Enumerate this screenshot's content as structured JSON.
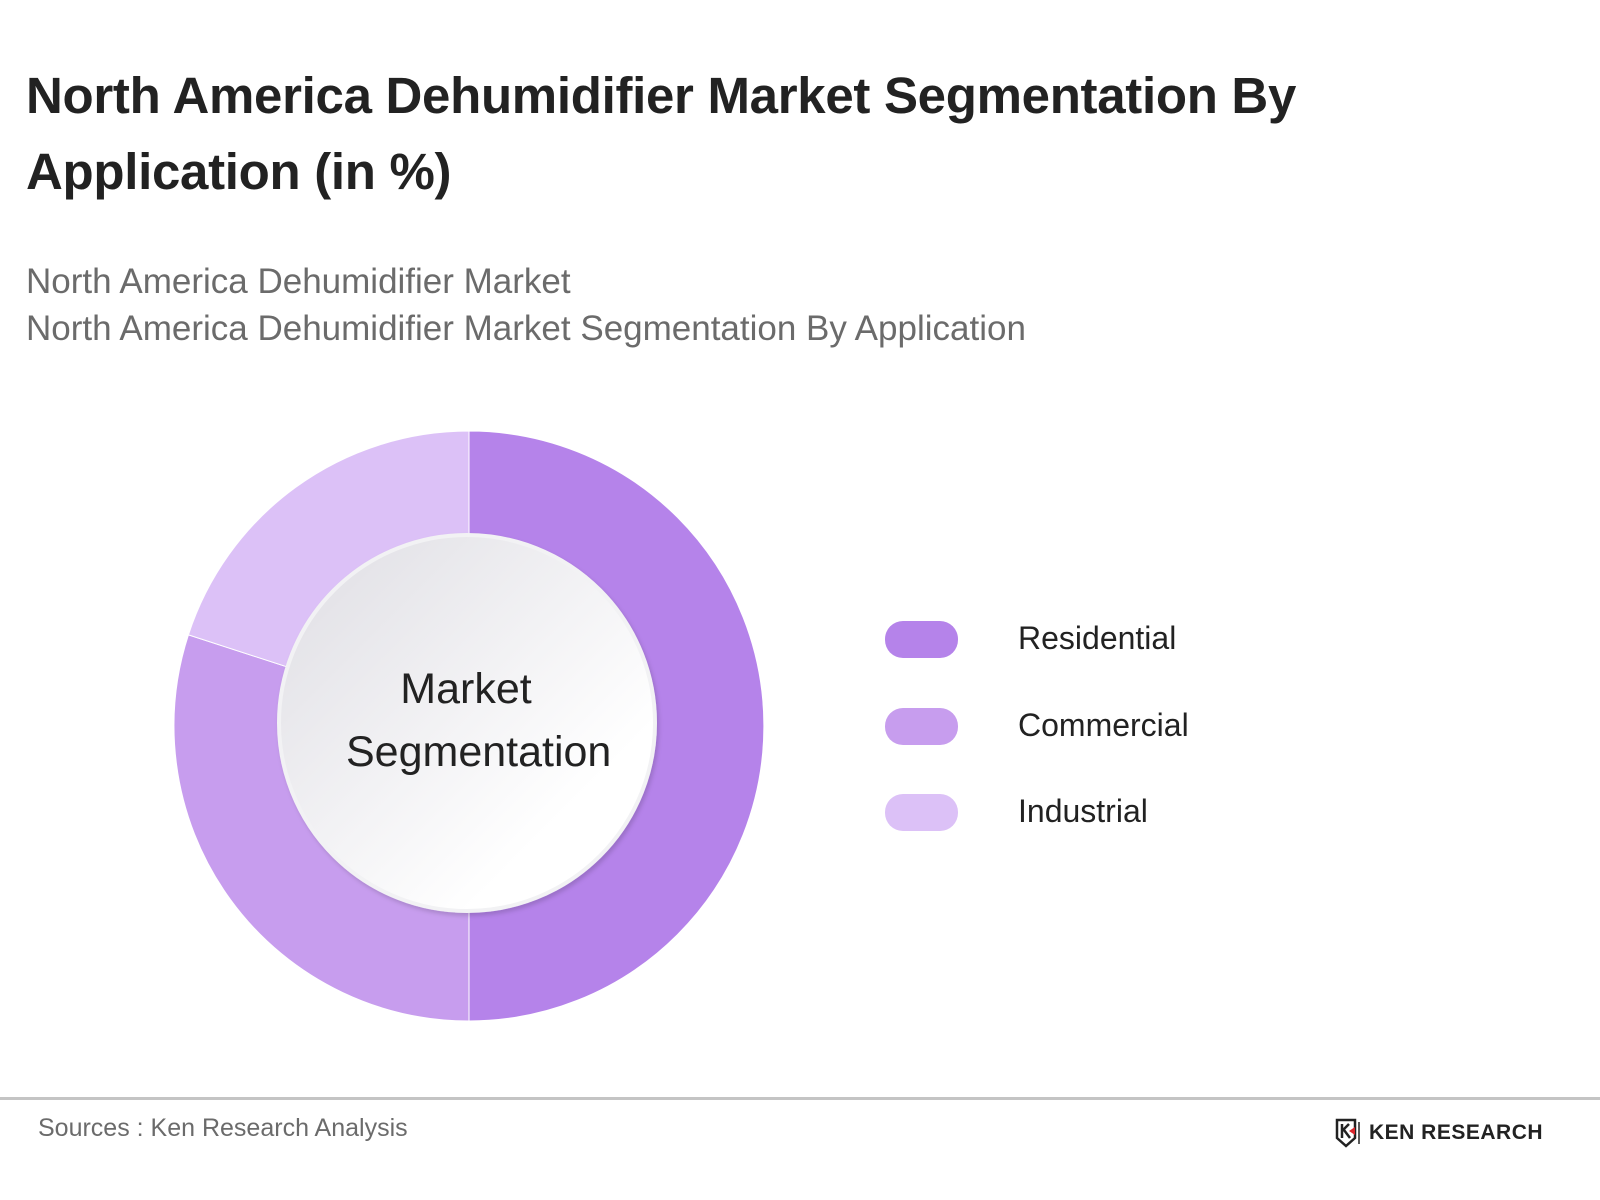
{
  "header": {
    "title": "North America Dehumidifier Market Segmentation By Application (in %)",
    "subtitle_lines": [
      "North America Dehumidifier Market",
      "North America Dehumidifier Market Segmentation By Application"
    ]
  },
  "chart": {
    "center_label_line1": "Market",
    "center_label_line2": "Segmentation"
  },
  "legend": [
    {
      "label": "Residential",
      "color": "#b583ea"
    },
    {
      "label": "Commercial",
      "color": "#c79dee"
    },
    {
      "label": "Industrial",
      "color": "#dcc1f7"
    }
  ],
  "footer": {
    "source": "Sources : Ken Research Analysis",
    "brand": "KEN RESEARCH",
    "brand_icon": "ken-research-logo-icon"
  },
  "chart_data": {
    "type": "pie",
    "variant": "donut",
    "title": "North America Dehumidifier Market Segmentation By Application (in %)",
    "subtitle": "North America Dehumidifier Market / North America Dehumidifier Market Segmentation By Application",
    "center_label": "Market Segmentation",
    "categories": [
      "Residential",
      "Commercial",
      "Industrial"
    ],
    "values": [
      50,
      30,
      20
    ],
    "unit": "%",
    "colors": [
      "#b583ea",
      "#c79dee",
      "#dcc1f7"
    ],
    "data_labels_shown": false,
    "legend_position": "right",
    "start_angle_deg": 0,
    "direction": "clockwise"
  }
}
